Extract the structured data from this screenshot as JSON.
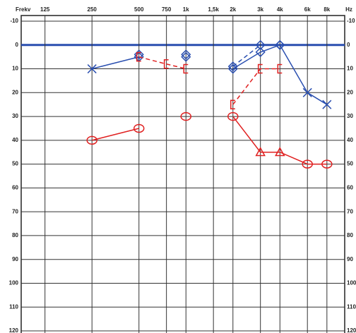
{
  "chart_data": {
    "type": "line",
    "x_label": "Frekv",
    "x_unit": "Hz",
    "x": [
      125,
      250,
      500,
      750,
      1000,
      1500,
      2000,
      3000,
      4000,
      6000,
      8000
    ],
    "xticks": [
      {
        "value": 125,
        "label": "125"
      },
      {
        "value": 250,
        "label": "250"
      },
      {
        "value": 500,
        "label": "500"
      },
      {
        "value": 750,
        "label": "750"
      },
      {
        "value": 1000,
        "label": "1k"
      },
      {
        "value": 1500,
        "label": "1,5k"
      },
      {
        "value": 2000,
        "label": "2k"
      },
      {
        "value": 3000,
        "label": "3k"
      },
      {
        "value": 4000,
        "label": "4k"
      },
      {
        "value": 6000,
        "label": "6k"
      },
      {
        "value": 8000,
        "label": "8k"
      }
    ],
    "xlim": [
      88,
      10400
    ],
    "x_log": true,
    "ylim": [
      -10,
      120
    ],
    "y_inverted": true,
    "yticks": [
      -10,
      0,
      10,
      20,
      30,
      40,
      50,
      60,
      70,
      80,
      90,
      100,
      110,
      120
    ],
    "grid": true,
    "zero_line_color": "#2a4fb0",
    "series": [
      {
        "color": "#2a4fb0",
        "dash": false,
        "markers": [
          null,
          "x",
          "diamond",
          null,
          "diamond",
          null,
          "diamond",
          "diamond",
          "diamond",
          "x",
          "x"
        ],
        "values": [
          null,
          10,
          5,
          null,
          5,
          null,
          10,
          3,
          0,
          20,
          25
        ]
      },
      {
        "color": "#2a4fb0",
        "dash": true,
        "markers": [
          null,
          null,
          "diamond",
          null,
          "diamond",
          null,
          "diamond",
          "diamond",
          "diamond",
          null,
          null
        ],
        "values": [
          null,
          null,
          4,
          null,
          4,
          null,
          9,
          0,
          0,
          null,
          null
        ]
      },
      {
        "color": "#e02020",
        "dash": true,
        "markers": [
          null,
          null,
          "bracket",
          "bracket",
          "bracket",
          null,
          "bracket",
          "bracket",
          "bracket",
          null,
          null
        ],
        "values": [
          null,
          null,
          5,
          8,
          10,
          null,
          25,
          10,
          10,
          null,
          null
        ]
      },
      {
        "color": "#e02020",
        "dash": false,
        "markers": [
          null,
          "circle",
          "circle",
          null,
          "circle",
          null,
          "circle",
          "triangle",
          "triangle",
          "circle",
          "circle"
        ],
        "values": [
          null,
          40,
          35,
          null,
          30,
          null,
          30,
          45,
          45,
          50,
          50
        ]
      }
    ]
  }
}
